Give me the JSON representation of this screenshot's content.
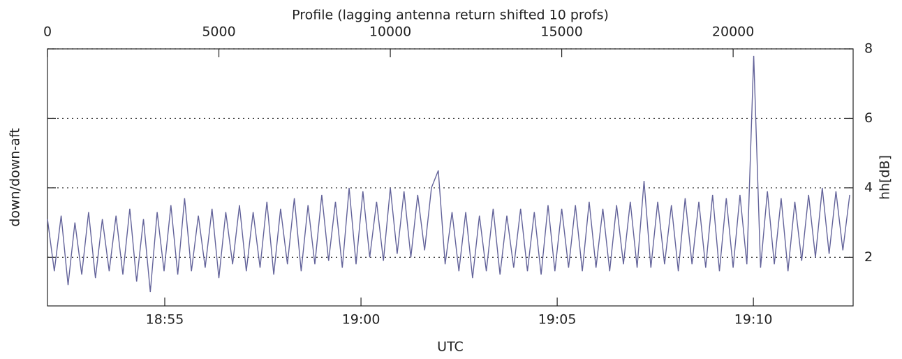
{
  "chart_data": {
    "type": "line",
    "title": "Profile (lagging antenna return shifted 10 profs)",
    "xlabel": "UTC",
    "ylabel": "down/down-aft",
    "y2label": "hh[dB]",
    "xlim": [
      0,
      23500
    ],
    "xticks": [
      0,
      5000,
      10000,
      15000,
      20000
    ],
    "x2ticks": [
      {
        "value": 3421,
        "label": "18:55"
      },
      {
        "value": 9145,
        "label": "19:00"
      },
      {
        "value": 14868,
        "label": "19:05"
      },
      {
        "value": 20591,
        "label": "19:10"
      }
    ],
    "ylim": [
      0.6,
      8.0
    ],
    "yticks": [
      2,
      4,
      6,
      8
    ],
    "grid": true,
    "x": [
      0,
      200,
      400,
      600,
      800,
      1000,
      1200,
      1400,
      1600,
      1800,
      2000,
      2200,
      2400,
      2600,
      2800,
      3000,
      3200,
      3400,
      3600,
      3800,
      4000,
      4200,
      4400,
      4600,
      4800,
      5000,
      5200,
      5400,
      5600,
      5800,
      6000,
      6200,
      6400,
      6600,
      6800,
      7000,
      7200,
      7400,
      7600,
      7800,
      8000,
      8200,
      8400,
      8600,
      8800,
      9000,
      9200,
      9400,
      9600,
      9800,
      10000,
      10200,
      10400,
      10600,
      10800,
      11000,
      11200,
      11400,
      11600,
      11800,
      12000,
      12200,
      12400,
      12600,
      12800,
      13000,
      13200,
      13400,
      13600,
      13800,
      14000,
      14200,
      14400,
      14600,
      14800,
      15000,
      15200,
      15400,
      15600,
      15800,
      16000,
      16200,
      16400,
      16600,
      16800,
      17000,
      17200,
      17400,
      17600,
      17800,
      18000,
      18200,
      18400,
      18600,
      18800,
      19000,
      19200,
      19400,
      19600,
      19800,
      20000,
      20200,
      20400,
      20600,
      20800,
      21000,
      21200,
      21400,
      21600,
      21800,
      22000,
      22200,
      22400,
      22600,
      22800,
      23000,
      23200,
      23400
    ],
    "series": [
      {
        "name": "hh",
        "color": "#63639a",
        "values": [
          3.1,
          1.6,
          3.2,
          1.2,
          3.0,
          1.5,
          3.3,
          1.4,
          3.1,
          1.6,
          3.2,
          1.5,
          3.4,
          1.3,
          3.1,
          1.0,
          3.3,
          1.6,
          3.5,
          1.5,
          3.7,
          1.6,
          3.2,
          1.7,
          3.4,
          1.4,
          3.3,
          1.8,
          3.5,
          1.6,
          3.3,
          1.7,
          3.6,
          1.5,
          3.4,
          1.8,
          3.7,
          1.6,
          3.5,
          1.8,
          3.8,
          1.9,
          3.6,
          1.7,
          4.0,
          1.8,
          3.9,
          2.0,
          3.6,
          1.9,
          4.0,
          2.1,
          3.9,
          2.0,
          3.8,
          2.2,
          4.0,
          4.5,
          1.8,
          3.3,
          1.6,
          3.3,
          1.4,
          3.2,
          1.6,
          3.4,
          1.5,
          3.2,
          1.7,
          3.4,
          1.6,
          3.3,
          1.5,
          3.5,
          1.6,
          3.4,
          1.7,
          3.5,
          1.6,
          3.6,
          1.7,
          3.4,
          1.6,
          3.5,
          1.8,
          3.6,
          1.7,
          4.2,
          1.7,
          3.6,
          1.8,
          3.5,
          1.6,
          3.7,
          1.8,
          3.6,
          1.7,
          3.8,
          1.6,
          3.7,
          1.7,
          3.8,
          1.8,
          7.8,
          1.7,
          3.9,
          1.8,
          3.7,
          1.6,
          3.6,
          1.9,
          3.8,
          2.0,
          4.0,
          2.1,
          3.9,
          2.2,
          3.8
        ]
      }
    ]
  }
}
